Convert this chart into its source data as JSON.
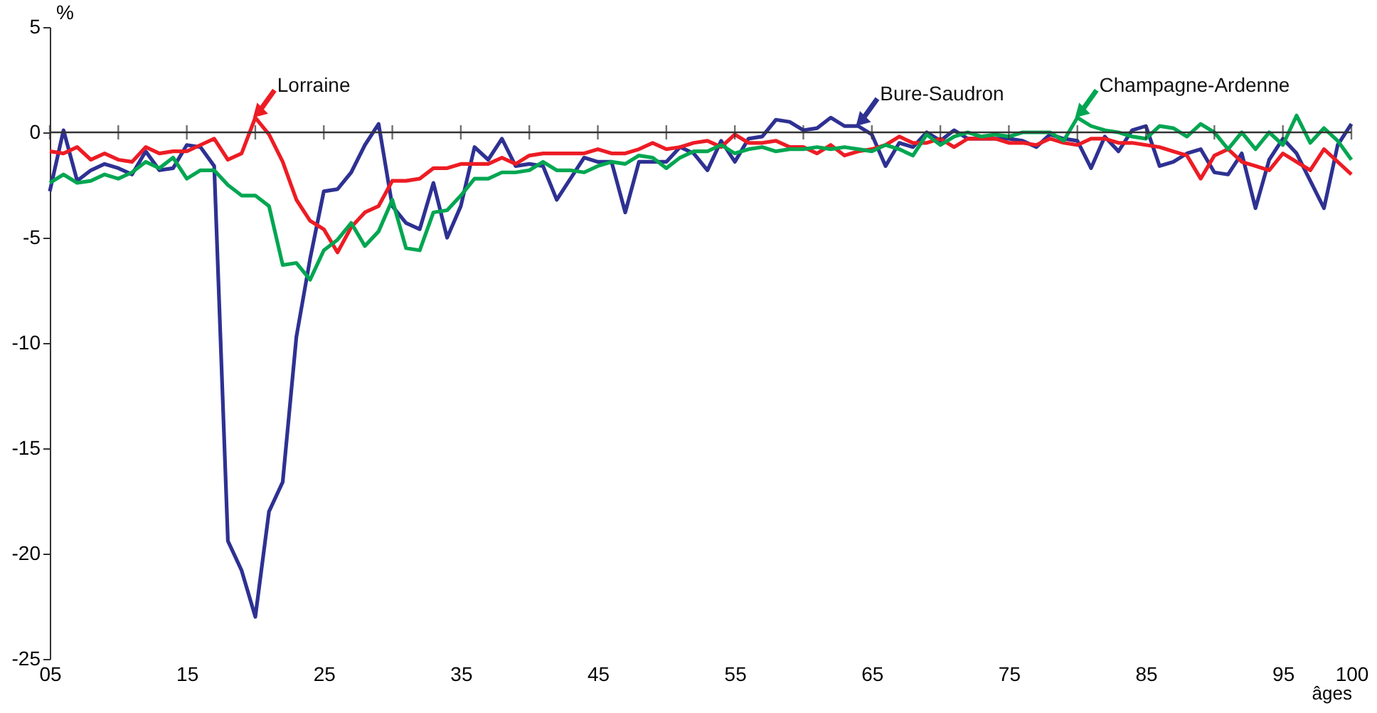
{
  "chart_data": {
    "type": "line",
    "xlabel": "âges",
    "ylabel": "%",
    "x": [
      5,
      6,
      7,
      8,
      9,
      10,
      11,
      12,
      13,
      14,
      15,
      16,
      17,
      18,
      19,
      20,
      21,
      22,
      23,
      24,
      25,
      26,
      27,
      28,
      29,
      30,
      31,
      32,
      33,
      34,
      35,
      36,
      37,
      38,
      39,
      40,
      41,
      42,
      43,
      44,
      45,
      46,
      47,
      48,
      49,
      50,
      51,
      52,
      53,
      54,
      55,
      56,
      57,
      58,
      59,
      60,
      61,
      62,
      63,
      64,
      65,
      66,
      67,
      68,
      69,
      70,
      71,
      72,
      73,
      74,
      75,
      76,
      77,
      78,
      79,
      80,
      81,
      82,
      83,
      84,
      85,
      86,
      87,
      88,
      89,
      90,
      91,
      92,
      93,
      94,
      95,
      96,
      97,
      98,
      99,
      100
    ],
    "series": [
      {
        "color": "#2e3192",
        "values": [
          -2.8,
          0.1,
          -2.3,
          -1.8,
          -1.5,
          -1.7,
          -2.0,
          -0.9,
          -1.8,
          -1.7,
          -0.6,
          -0.7,
          -1.6,
          -19.4,
          -20.8,
          -23.0,
          -18.0,
          -16.6,
          -9.7,
          -6.0,
          -2.8,
          -2.7,
          -1.9,
          -0.6,
          0.4,
          -3.5,
          -4.3,
          -4.6,
          -2.4,
          -5.0,
          -3.5,
          -0.7,
          -1.3,
          -0.3,
          -1.6,
          -1.5,
          -1.6,
          -3.2,
          -2.2,
          -1.2,
          -1.4,
          -1.4,
          -3.8,
          -1.4,
          -1.4,
          -1.4,
          -0.7,
          -1.0,
          -1.8,
          -0.4,
          -1.4,
          -0.3,
          -0.2,
          0.6,
          0.5,
          0.1,
          0.2,
          0.7,
          0.3,
          0.3,
          -0.1,
          -1.6,
          -0.5,
          -0.7,
          0.0,
          -0.4,
          0.1,
          -0.3,
          -0.3,
          -0.3,
          -0.3,
          -0.4,
          -0.7,
          -0.1,
          -0.3,
          -0.4,
          -1.7,
          -0.2,
          -0.9,
          0.1,
          0.3,
          -1.6,
          -1.4,
          -1.0,
          -0.8,
          -1.9,
          -2.0,
          -1.0,
          -3.6,
          -1.3,
          -0.3,
          -1.0,
          -2.3,
          -3.6,
          -0.6,
          0.4
        ]
      },
      {
        "color": "#ed1c24",
        "values": [
          -0.9,
          -1.0,
          -0.7,
          -1.3,
          -1.0,
          -1.3,
          -1.4,
          -0.7,
          -1.0,
          -0.9,
          -0.9,
          -0.6,
          -0.3,
          -1.3,
          -1.0,
          0.7,
          -0.1,
          -1.4,
          -3.2,
          -4.2,
          -4.6,
          -5.7,
          -4.5,
          -3.8,
          -3.5,
          -2.3,
          -2.3,
          -2.2,
          -1.7,
          -1.7,
          -1.5,
          -1.5,
          -1.5,
          -1.2,
          -1.5,
          -1.1,
          -1.0,
          -1.0,
          -1.0,
          -1.0,
          -0.8,
          -1.0,
          -1.0,
          -0.8,
          -0.5,
          -0.8,
          -0.7,
          -0.5,
          -0.4,
          -0.7,
          -0.1,
          -0.5,
          -0.5,
          -0.4,
          -0.7,
          -0.7,
          -1.0,
          -0.6,
          -1.1,
          -0.9,
          -0.8,
          -0.6,
          -0.2,
          -0.5,
          -0.5,
          -0.3,
          -0.7,
          -0.3,
          -0.3,
          -0.3,
          -0.5,
          -0.5,
          -0.6,
          -0.3,
          -0.5,
          -0.6,
          -0.3,
          -0.3,
          -0.5,
          -0.5,
          -0.6,
          -0.7,
          -0.9,
          -1.1,
          -2.2,
          -1.1,
          -0.8,
          -1.4,
          -1.6,
          -1.8,
          -1.0,
          -1.4,
          -1.8,
          -0.8,
          -1.4,
          -2.0
        ]
      },
      {
        "color": "#00a651",
        "values": [
          -2.4,
          -2.0,
          -2.4,
          -2.3,
          -2.0,
          -2.2,
          -1.9,
          -1.4,
          -1.7,
          -1.2,
          -2.2,
          -1.8,
          -1.8,
          -2.5,
          -3.0,
          -3.0,
          -3.5,
          -6.3,
          -6.2,
          -7.0,
          -5.6,
          -5.1,
          -4.3,
          -5.4,
          -4.7,
          -3.2,
          -5.5,
          -5.6,
          -3.8,
          -3.7,
          -3.0,
          -2.2,
          -2.2,
          -1.9,
          -1.9,
          -1.8,
          -1.4,
          -1.8,
          -1.8,
          -1.9,
          -1.6,
          -1.4,
          -1.5,
          -1.1,
          -1.2,
          -1.7,
          -1.2,
          -0.9,
          -0.9,
          -0.6,
          -1.0,
          -0.8,
          -0.7,
          -0.9,
          -0.8,
          -0.8,
          -0.7,
          -0.8,
          -0.7,
          -0.8,
          -0.9,
          -0.6,
          -0.8,
          -1.1,
          -0.1,
          -0.6,
          -0.2,
          0.0,
          -0.2,
          -0.1,
          -0.2,
          0.0,
          0.0,
          0.0,
          -0.4,
          0.7,
          0.3,
          0.1,
          0.0,
          -0.2,
          -0.3,
          0.3,
          0.2,
          -0.2,
          0.4,
          0.0,
          -0.8,
          0.0,
          -0.8,
          0.0,
          -0.6,
          0.8,
          -0.5,
          0.2,
          -0.4,
          -1.3
        ]
      }
    ],
    "annotations": [
      {
        "text": "Bure-Saudron",
        "x": 64,
        "y": 0.3
      },
      {
        "text": "Lorraine",
        "x": 20,
        "y": 0.7
      },
      {
        "text": "Champagne-Ardenne",
        "x": 80,
        "y": 0.7
      }
    ],
    "ref_lines": [
      {
        "axis": "y",
        "value": 0,
        "color": "#333333"
      }
    ],
    "xlim": [
      5,
      100
    ],
    "ylim": [
      -25,
      5
    ],
    "xticks": [
      {
        "value": 5,
        "label": "05"
      },
      {
        "value": 10,
        "label": null
      },
      15,
      {
        "value": 20,
        "label": null
      },
      25,
      {
        "value": 30,
        "label": null
      },
      35,
      {
        "value": 40,
        "label": null
      },
      45,
      {
        "value": 50,
        "label": null
      },
      55,
      {
        "value": 60,
        "label": null
      },
      65,
      {
        "value": 70,
        "label": null
      },
      75,
      {
        "value": 80,
        "label": null
      },
      85,
      {
        "value": 90,
        "label": null
      },
      95,
      100
    ],
    "yticks": [
      -25,
      -20,
      -15,
      -10,
      -5,
      0,
      5
    ],
    "grid": false,
    "line_style": "solid",
    "marker": "none"
  }
}
